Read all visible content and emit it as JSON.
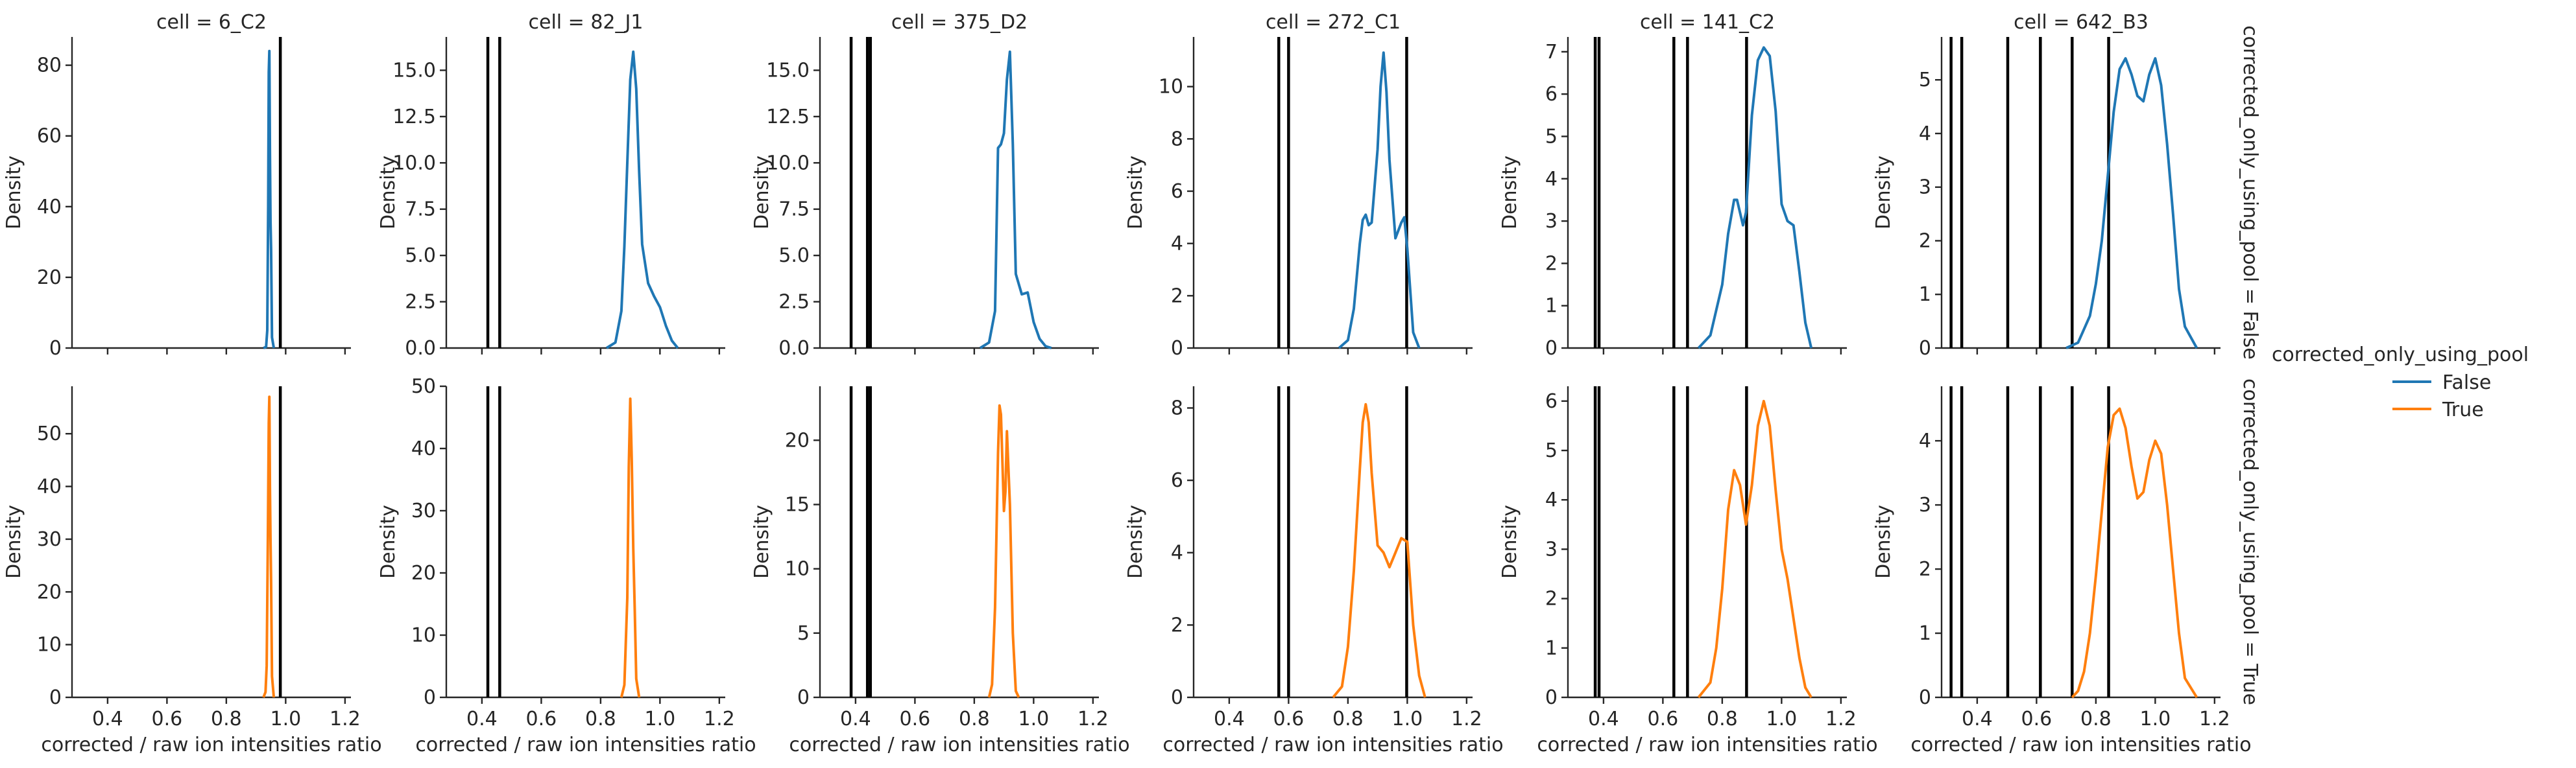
{
  "facet": {
    "col_prefix": "cell = ",
    "row_prefix": "corrected_only_using_pool = ",
    "columns": [
      "6_C2",
      "82_J1",
      "375_D2",
      "272_C1",
      "141_C2",
      "642_B3"
    ],
    "rows": [
      "False",
      "True"
    ]
  },
  "legend": {
    "title": "corrected_only_using_pool",
    "entries": [
      {
        "label": "False",
        "color": "#1f77b4"
      },
      {
        "label": "True",
        "color": "#ff7f0e"
      }
    ]
  },
  "chart_data": {
    "type": "line",
    "kind": "kde",
    "xlabel": "corrected / raw ion intensities ratio",
    "ylabel": "Density",
    "xticks": [
      0.4,
      0.6,
      0.8,
      1.0,
      1.2
    ],
    "xlim": [
      0.28,
      1.22
    ],
    "grid": false,
    "legend_position": "right",
    "panels": [
      {
        "cell": "6_C2",
        "corrected_only_using_pool": "False",
        "color": "#1f77b4",
        "ylim": [
          0,
          88
        ],
        "yticks": [
          0,
          20,
          40,
          60,
          80
        ],
        "ytick_labels": [
          "0",
          "20",
          "40",
          "60",
          "80"
        ],
        "vlines": [
          0.982
        ],
        "curve": {
          "x": [
            0.925,
            0.934,
            0.938,
            0.941,
            0.943,
            0.945,
            0.947,
            0.949,
            0.951,
            0.954,
            0.96
          ],
          "y": [
            0,
            0.3,
            5,
            40,
            78,
            84,
            56,
            36,
            28,
            3,
            0
          ]
        }
      },
      {
        "cell": "82_J1",
        "corrected_only_using_pool": "False",
        "color": "#1f77b4",
        "ylim": [
          0,
          16.8
        ],
        "yticks": [
          0,
          2.5,
          5.0,
          7.5,
          10.0,
          12.5,
          15.0
        ],
        "ytick_labels": [
          "0.0",
          "2.5",
          "5.0",
          "7.5",
          "10.0",
          "12.5",
          "15.0"
        ],
        "vlines": [
          0.42,
          0.46
        ],
        "curve": {
          "x": [
            0.82,
            0.85,
            0.87,
            0.88,
            0.89,
            0.9,
            0.91,
            0.92,
            0.93,
            0.94,
            0.96,
            0.98,
            1.0,
            1.02,
            1.04,
            1.06
          ],
          "y": [
            0,
            0.3,
            2,
            5.5,
            10,
            14.5,
            16,
            14,
            9.5,
            5.6,
            3.5,
            2.8,
            2.2,
            1.2,
            0.4,
            0
          ]
        }
      },
      {
        "cell": "375_D2",
        "corrected_only_using_pool": "False",
        "color": "#1f77b4",
        "ylim": [
          0,
          16.8
        ],
        "yticks": [
          0,
          2.5,
          5.0,
          7.5,
          10.0,
          12.5,
          15.0
        ],
        "ytick_labels": [
          "0.0",
          "2.5",
          "5.0",
          "7.5",
          "10.0",
          "12.5",
          "15.0"
        ],
        "vlines": [
          0.385,
          0.44,
          0.45
        ],
        "curve": {
          "x": [
            0.82,
            0.85,
            0.87,
            0.88,
            0.89,
            0.9,
            0.91,
            0.92,
            0.93,
            0.94,
            0.96,
            0.98,
            1.0,
            1.02,
            1.04,
            1.06
          ],
          "y": [
            0,
            0.3,
            2,
            10.8,
            11,
            11.6,
            14.5,
            16,
            11,
            4,
            2.9,
            3,
            1.4,
            0.5,
            0.1,
            0
          ]
        }
      },
      {
        "cell": "272_C1",
        "corrected_only_using_pool": "False",
        "color": "#1f77b4",
        "ylim": [
          0,
          11.9
        ],
        "yticks": [
          0,
          2,
          4,
          6,
          8,
          10
        ],
        "ytick_labels": [
          "0",
          "2",
          "4",
          "6",
          "8",
          "10"
        ],
        "vlines": [
          0.567,
          0.6,
          0.998
        ],
        "curve": {
          "x": [
            0.77,
            0.8,
            0.82,
            0.84,
            0.85,
            0.86,
            0.87,
            0.88,
            0.9,
            0.91,
            0.92,
            0.93,
            0.94,
            0.96,
            0.98,
            0.99,
            1.0,
            1.02,
            1.04
          ],
          "y": [
            0,
            0.3,
            1.5,
            4,
            4.9,
            5.1,
            4.7,
            4.8,
            7.6,
            10,
            11.3,
            9.8,
            7.2,
            4.2,
            4.8,
            5,
            3.8,
            0.6,
            0
          ]
        }
      },
      {
        "cell": "141_C2",
        "corrected_only_using_pool": "False",
        "color": "#1f77b4",
        "ylim": [
          0,
          7.35
        ],
        "yticks": [
          0,
          1,
          2,
          3,
          4,
          5,
          6,
          7
        ],
        "ytick_labels": [
          "0",
          "1",
          "2",
          "3",
          "4",
          "5",
          "6",
          "7"
        ],
        "vlines": [
          0.372,
          0.385,
          0.637,
          0.683,
          0.882
        ],
        "curve": {
          "x": [
            0.72,
            0.76,
            0.8,
            0.82,
            0.84,
            0.85,
            0.87,
            0.88,
            0.9,
            0.92,
            0.94,
            0.96,
            0.98,
            1.0,
            1.02,
            1.04,
            1.06,
            1.08,
            1.1
          ],
          "y": [
            0,
            0.3,
            1.5,
            2.7,
            3.5,
            3.5,
            2.9,
            3.2,
            5.5,
            6.8,
            7.1,
            6.9,
            5.6,
            3.4,
            3.0,
            2.9,
            1.8,
            0.6,
            0
          ]
        }
      },
      {
        "cell": "642_B3",
        "corrected_only_using_pool": "False",
        "color": "#1f77b4",
        "ylim": [
          0,
          5.8
        ],
        "yticks": [
          0,
          1,
          2,
          3,
          4,
          5
        ],
        "ytick_labels": [
          "0",
          "1",
          "2",
          "3",
          "4",
          "5"
        ],
        "vlines": [
          0.312,
          0.348,
          0.503,
          0.613,
          0.72,
          0.843
        ],
        "curve": {
          "x": [
            0.7,
            0.74,
            0.78,
            0.8,
            0.82,
            0.84,
            0.86,
            0.88,
            0.9,
            0.92,
            0.94,
            0.96,
            0.98,
            1.0,
            1.02,
            1.04,
            1.06,
            1.08,
            1.1,
            1.14
          ],
          "y": [
            0,
            0.1,
            0.6,
            1.2,
            2.0,
            3.2,
            4.4,
            5.2,
            5.4,
            5.1,
            4.7,
            4.6,
            5.1,
            5.4,
            4.9,
            3.8,
            2.5,
            1.1,
            0.4,
            0
          ]
        }
      },
      {
        "cell": "6_C2",
        "corrected_only_using_pool": "True",
        "color": "#ff7f0e",
        "ylim": [
          0,
          59
        ],
        "yticks": [
          0,
          10,
          20,
          30,
          40,
          50
        ],
        "ytick_labels": [
          "0",
          "10",
          "20",
          "30",
          "40",
          "50"
        ],
        "vlines": [
          0.982
        ],
        "curve": {
          "x": [
            0.925,
            0.932,
            0.936,
            0.94,
            0.943,
            0.945,
            0.947,
            0.949,
            0.951,
            0.954,
            0.96
          ],
          "y": [
            0,
            1,
            6,
            30,
            52,
            57,
            40,
            30,
            22,
            4,
            0
          ]
        }
      },
      {
        "cell": "82_J1",
        "corrected_only_using_pool": "True",
        "color": "#ff7f0e",
        "ylim": [
          0,
          50
        ],
        "yticks": [
          0,
          10,
          20,
          30,
          40,
          50
        ],
        "ytick_labels": [
          "0",
          "10",
          "20",
          "30",
          "40",
          "50"
        ],
        "vlines": [
          0.42,
          0.46
        ],
        "curve": {
          "x": [
            0.87,
            0.88,
            0.89,
            0.895,
            0.9,
            0.905,
            0.91,
            0.915,
            0.92,
            0.93
          ],
          "y": [
            0,
            2,
            16,
            37,
            48,
            38,
            24,
            14,
            3,
            0
          ]
        }
      },
      {
        "cell": "375_D2",
        "corrected_only_using_pool": "True",
        "color": "#ff7f0e",
        "ylim": [
          0,
          24.2
        ],
        "yticks": [
          0,
          5,
          10,
          15,
          20
        ],
        "ytick_labels": [
          "0",
          "5",
          "10",
          "15",
          "20"
        ],
        "vlines": [
          0.385,
          0.44,
          0.45
        ],
        "curve": {
          "x": [
            0.85,
            0.86,
            0.87,
            0.88,
            0.885,
            0.89,
            0.9,
            0.905,
            0.91,
            0.92,
            0.93,
            0.94,
            0.95
          ],
          "y": [
            0,
            1,
            7,
            19,
            22.7,
            22,
            14.5,
            16,
            20.7,
            15,
            5,
            0.5,
            0
          ]
        }
      },
      {
        "cell": "272_C1",
        "corrected_only_using_pool": "True",
        "color": "#ff7f0e",
        "ylim": [
          0,
          8.6
        ],
        "yticks": [
          0,
          2,
          4,
          6,
          8
        ],
        "ytick_labels": [
          "0",
          "2",
          "4",
          "6",
          "8"
        ],
        "vlines": [
          0.567,
          0.6,
          0.998
        ],
        "curve": {
          "x": [
            0.75,
            0.78,
            0.8,
            0.82,
            0.84,
            0.85,
            0.86,
            0.87,
            0.88,
            0.9,
            0.92,
            0.94,
            0.96,
            0.98,
            1.0,
            1.02,
            1.04,
            1.06
          ],
          "y": [
            0,
            0.3,
            1.4,
            3.5,
            6.3,
            7.6,
            8.1,
            7.6,
            6.2,
            4.2,
            4.0,
            3.6,
            4.0,
            4.4,
            4.3,
            2.0,
            0.6,
            0
          ]
        }
      },
      {
        "cell": "141_C2",
        "corrected_only_using_pool": "True",
        "color": "#ff7f0e",
        "ylim": [
          0,
          6.3
        ],
        "yticks": [
          0,
          1,
          2,
          3,
          4,
          5,
          6
        ],
        "ytick_labels": [
          "0",
          "1",
          "2",
          "3",
          "4",
          "5",
          "6"
        ],
        "vlines": [
          0.372,
          0.385,
          0.637,
          0.683,
          0.882
        ],
        "curve": {
          "x": [
            0.72,
            0.76,
            0.78,
            0.8,
            0.82,
            0.84,
            0.86,
            0.88,
            0.9,
            0.92,
            0.94,
            0.96,
            0.98,
            1.0,
            1.02,
            1.04,
            1.06,
            1.08,
            1.1
          ],
          "y": [
            0,
            0.3,
            1.0,
            2.2,
            3.8,
            4.6,
            4.3,
            3.5,
            4.3,
            5.5,
            6.0,
            5.5,
            4.2,
            3.0,
            2.4,
            1.6,
            0.8,
            0.2,
            0
          ]
        }
      },
      {
        "cell": "642_B3",
        "corrected_only_using_pool": "True",
        "color": "#ff7f0e",
        "ylim": [
          0,
          4.85
        ],
        "yticks": [
          0,
          1,
          2,
          3,
          4
        ],
        "ytick_labels": [
          "0",
          "1",
          "2",
          "3",
          "4"
        ],
        "vlines": [
          0.312,
          0.348,
          0.503,
          0.613,
          0.72,
          0.843
        ],
        "curve": {
          "x": [
            0.72,
            0.74,
            0.76,
            0.78,
            0.8,
            0.82,
            0.84,
            0.86,
            0.88,
            0.9,
            0.92,
            0.94,
            0.96,
            0.98,
            1.0,
            1.02,
            1.04,
            1.06,
            1.08,
            1.1,
            1.14
          ],
          "y": [
            0,
            0.1,
            0.4,
            1.0,
            1.9,
            2.9,
            3.9,
            4.4,
            4.5,
            4.2,
            3.6,
            3.1,
            3.2,
            3.7,
            4.0,
            3.8,
            3.0,
            2.0,
            1.0,
            0.3,
            0
          ]
        }
      }
    ]
  }
}
